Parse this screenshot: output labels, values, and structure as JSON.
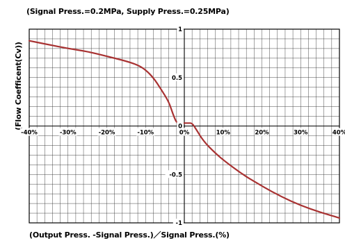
{
  "chart_data": {
    "type": "line",
    "title": "(Signal Press.=0.2MPa, Supply Press.=0.25MPa)",
    "xlabel": "(Output Press. -Signal Press.)／Signal Press.(%)",
    "ylabel": "(Flow Coefficent(Cv))",
    "xlim": [
      -40,
      40
    ],
    "ylim": [
      -1,
      1
    ],
    "x_ticks": [
      "-40%",
      "-30%",
      "-20%",
      "-10%",
      "0%",
      "10%",
      "20%",
      "30%",
      "40%"
    ],
    "y_ticks": [
      "1",
      "0.5",
      "0",
      "-0.5",
      "-1"
    ],
    "grid": true,
    "series": [
      {
        "color": "#a83232",
        "x": [
          -40,
          -35,
          -30,
          -25,
          -20,
          -15,
          -12,
          -10,
          -8,
          -6,
          -4,
          -3,
          -2,
          -1,
          0,
          1,
          2,
          3,
          5,
          8,
          10,
          15,
          20,
          25,
          30,
          35,
          40
        ],
        "y": [
          0.88,
          0.84,
          0.8,
          0.77,
          0.72,
          0.67,
          0.63,
          0.58,
          0.5,
          0.38,
          0.25,
          0.13,
          0.03,
          0.03,
          0.03,
          0.03,
          0.03,
          -0.03,
          -0.16,
          -0.28,
          -0.35,
          -0.5,
          -0.62,
          -0.73,
          -0.82,
          -0.89,
          -0.95
        ]
      }
    ]
  }
}
